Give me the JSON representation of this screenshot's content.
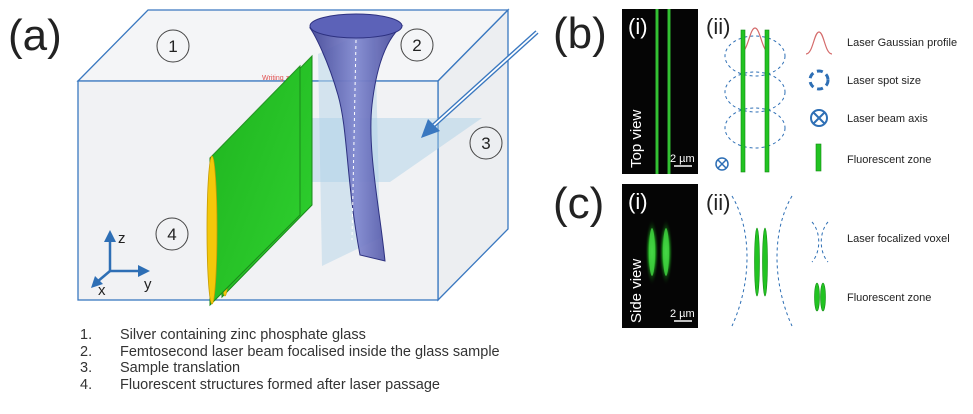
{
  "panels": {
    "a": "(a)",
    "b": "(b)",
    "c": "(c)",
    "i": "(i)",
    "ii": "(ii)"
  },
  "panel_a": {
    "circles": [
      "1",
      "2",
      "3",
      "4"
    ],
    "writing_label": "Writing z",
    "axes": {
      "z": "z",
      "y": "y",
      "x": "x"
    }
  },
  "micrographs": {
    "top_view": "Top view",
    "side_view": "Side view",
    "scale_bar": "2 µm"
  },
  "legend_b": [
    "Laser Gaussian profile",
    "Laser spot size",
    "Laser beam axis",
    "Fluorescent zone"
  ],
  "legend_c": [
    "Laser focalized voxel",
    "Fluorescent zone"
  ],
  "caption": [
    {
      "num": "1.",
      "text": "Silver containing zinc phosphate glass"
    },
    {
      "num": "2.",
      "text": "Femtosecond laser beam focalised inside the glass sample"
    },
    {
      "num": "3.",
      "text": "Sample translation"
    },
    {
      "num": "4.",
      "text": "Fluorescent structures formed after  laser passage"
    }
  ],
  "colors": {
    "glass_edge": "#2e6fb5",
    "beam": "#4a4fa8",
    "fluorescent_green": "#22c322",
    "fluorescent_yellow": "#f3c80a",
    "dashed_blue": "#2e6fb5",
    "gaussian": "#d46a6a"
  }
}
